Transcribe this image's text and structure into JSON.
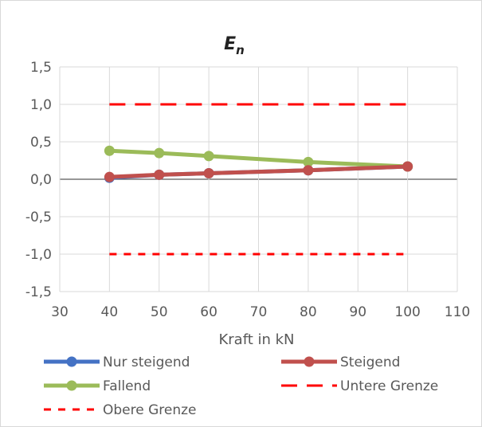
{
  "chart_data": {
    "type": "line",
    "title": "E",
    "title_subscript": "n",
    "xlabel": "Kraft in kN",
    "ylabel": "",
    "xlim": [
      30,
      110
    ],
    "ylim": [
      -1.5,
      1.5
    ],
    "x_ticks": [
      "30",
      "40",
      "50",
      "60",
      "70",
      "80",
      "90",
      "100",
      "110"
    ],
    "y_ticks": [
      "1,5",
      "1,0",
      "0,5",
      "0,0",
      "-0,5",
      "-1,0",
      "-1,5"
    ],
    "grid": true,
    "legend_position": "bottom",
    "series": [
      {
        "name": "Nur steigend",
        "color": "#4472c4",
        "style": "line-markers",
        "x": [
          40,
          50,
          60,
          80,
          100
        ],
        "y": [
          0.02,
          0.06,
          0.08,
          0.12,
          0.17
        ]
      },
      {
        "name": "Steigend",
        "color": "#c0504d",
        "style": "line-markers",
        "x": [
          40,
          50,
          60,
          80,
          100
        ],
        "y": [
          0.03,
          0.06,
          0.08,
          0.12,
          0.17
        ]
      },
      {
        "name": "Fallend",
        "color": "#9bbb59",
        "style": "line-markers",
        "x": [
          40,
          50,
          60,
          80,
          100
        ],
        "y": [
          0.38,
          0.35,
          0.31,
          0.23,
          0.17
        ]
      },
      {
        "name": "Untere Grenze",
        "color": "#ff0000",
        "style": "long-dash",
        "x": [
          40,
          100
        ],
        "y": [
          1.0,
          1.0
        ]
      },
      {
        "name": "Obere Grenze",
        "color": "#ff0000",
        "style": "short-dash",
        "x": [
          40,
          100
        ],
        "y": [
          -1.0,
          -1.0
        ]
      }
    ]
  }
}
